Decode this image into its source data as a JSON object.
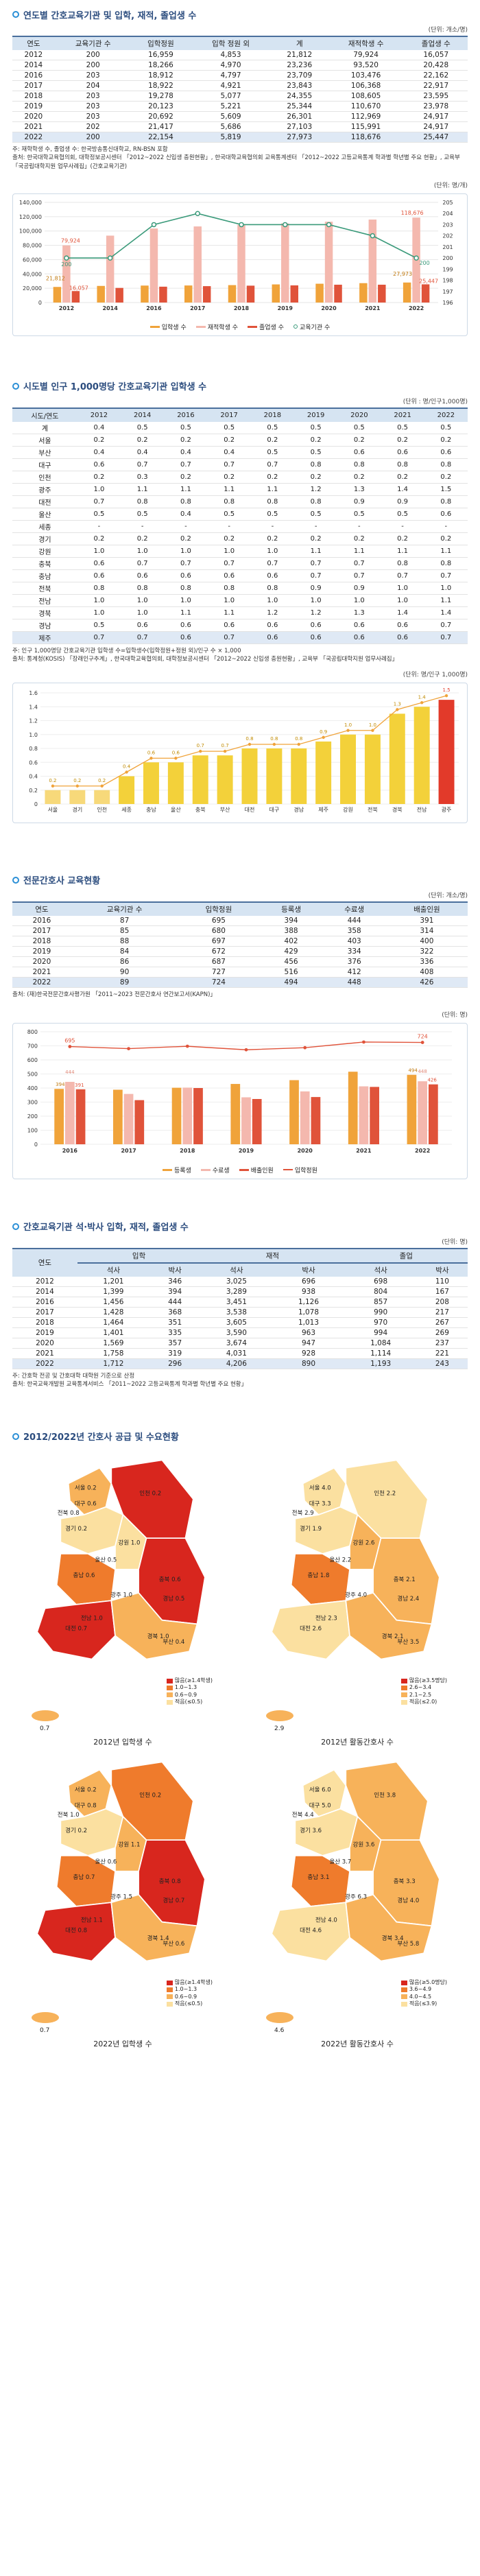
{
  "s1": {
    "title": "연도별 간호교육기관 및 입학, 재적, 졸업생 수",
    "unit": "(단위: 개소/명)",
    "headers": [
      "연도",
      "교육기관 수",
      "입학정원",
      "입학 정원 외",
      "계",
      "재적학생 수",
      "졸업생 수"
    ],
    "rows": [
      [
        "2012",
        "200",
        "16,959",
        "4,853",
        "21,812",
        "79,924",
        "16,057"
      ],
      [
        "2014",
        "200",
        "18,266",
        "4,970",
        "23,236",
        "93,520",
        "20,428"
      ],
      [
        "2016",
        "203",
        "18,912",
        "4,797",
        "23,709",
        "103,476",
        "22,162"
      ],
      [
        "2017",
        "204",
        "18,922",
        "4,921",
        "23,843",
        "106,368",
        "22,917"
      ],
      [
        "2018",
        "203",
        "19,278",
        "5,077",
        "24,355",
        "108,605",
        "23,595"
      ],
      [
        "2019",
        "203",
        "20,123",
        "5,221",
        "25,344",
        "110,670",
        "23,978"
      ],
      [
        "2020",
        "203",
        "20,692",
        "5,609",
        "26,301",
        "112,969",
        "24,917"
      ],
      [
        "2021",
        "202",
        "21,417",
        "5,686",
        "27,103",
        "115,991",
        "24,917"
      ],
      [
        "2022",
        "200",
        "22,154",
        "5,819",
        "27,973",
        "118,676",
        "25,447"
      ]
    ],
    "note1": "주: 재학학생 수, 졸업생 수: 한국방송통신대학교, RN-BSN 포함",
    "note2": "출처: 한국대학교육협의회, 대학정보공시센터 「2012~2022 신입생 충원현황」, 한국대학교육협의회 교육통계센터 「2012~2022 고등교육통계 학과별 학년별 주요 현황」, 교육부 「국공립대학지원 업무사례집」(간호교육기관)",
    "chart_unit": "(단위: 명/개)"
  },
  "chart1": {
    "type": "bar",
    "categories": [
      "2012",
      "2014",
      "2016",
      "2017",
      "2018",
      "2019",
      "2020",
      "2021",
      "2022"
    ],
    "series": [
      {
        "name": "입학생 수",
        "values": [
          21812,
          23236,
          23709,
          23843,
          24355,
          25344,
          26301,
          27103,
          27973
        ]
      },
      {
        "name": "재적학생 수",
        "values": [
          79924,
          93520,
          103476,
          106368,
          108605,
          110670,
          112969,
          115991,
          118676
        ]
      },
      {
        "name": "졸업생 수",
        "values": [
          16057,
          20428,
          22162,
          22917,
          23595,
          23978,
          24917,
          24917,
          25447
        ]
      },
      {
        "name": "교육기관 수",
        "values": [
          200,
          200,
          203,
          204,
          203,
          203,
          203,
          202,
          200
        ]
      }
    ],
    "ylim": [
      0,
      140000
    ],
    "y2lim": [
      196,
      205
    ],
    "yticks": [
      "0",
      "20,000",
      "40,000",
      "60,000",
      "80,000",
      "100,000",
      "120,000",
      "140,000"
    ],
    "y2ticks": [
      "196",
      "197",
      "198",
      "199",
      "200",
      "201",
      "202",
      "203",
      "204",
      "205"
    ],
    "labels": {
      "first_bar": "79,924",
      "last_bar": "118,676",
      "first_in": "21,812",
      "first_grad": "16,057",
      "last_in": "27,973",
      "last_grad": "25,447",
      "first_org": "200",
      "last_org": "200"
    }
  },
  "s2": {
    "title": "시도별 인구 1,000명당 간호교육기관 입학생 수",
    "unit": "(단위 : 명/인구1,000명)",
    "headers": [
      "시도/연도",
      "2012",
      "2014",
      "2016",
      "2017",
      "2018",
      "2019",
      "2020",
      "2021",
      "2022"
    ],
    "rows": [
      [
        "계",
        "0.4",
        "0.5",
        "0.5",
        "0.5",
        "0.5",
        "0.5",
        "0.5",
        "0.5",
        "0.5"
      ],
      [
        "서울",
        "0.2",
        "0.2",
        "0.2",
        "0.2",
        "0.2",
        "0.2",
        "0.2",
        "0.2",
        "0.2"
      ],
      [
        "부산",
        "0.4",
        "0.4",
        "0.4",
        "0.4",
        "0.5",
        "0.5",
        "0.6",
        "0.6",
        "0.6"
      ],
      [
        "대구",
        "0.6",
        "0.7",
        "0.7",
        "0.7",
        "0.7",
        "0.8",
        "0.8",
        "0.8",
        "0.8"
      ],
      [
        "인천",
        "0.2",
        "0.3",
        "0.2",
        "0.2",
        "0.2",
        "0.2",
        "0.2",
        "0.2",
        "0.2"
      ],
      [
        "광주",
        "1.0",
        "1.1",
        "1.1",
        "1.1",
        "1.1",
        "1.2",
        "1.3",
        "1.4",
        "1.5"
      ],
      [
        "대전",
        "0.7",
        "0.8",
        "0.8",
        "0.8",
        "0.8",
        "0.8",
        "0.9",
        "0.9",
        "0.8"
      ],
      [
        "울산",
        "0.5",
        "0.5",
        "0.4",
        "0.5",
        "0.5",
        "0.5",
        "0.5",
        "0.5",
        "0.6"
      ],
      [
        "세종",
        "-",
        "-",
        "-",
        "-",
        "-",
        "-",
        "-",
        "-",
        "-"
      ],
      [
        "경기",
        "0.2",
        "0.2",
        "0.2",
        "0.2",
        "0.2",
        "0.2",
        "0.2",
        "0.2",
        "0.2"
      ],
      [
        "강원",
        "1.0",
        "1.0",
        "1.0",
        "1.0",
        "1.0",
        "1.1",
        "1.1",
        "1.1",
        "1.1"
      ],
      [
        "충북",
        "0.6",
        "0.7",
        "0.7",
        "0.7",
        "0.7",
        "0.7",
        "0.7",
        "0.8",
        "0.8"
      ],
      [
        "충남",
        "0.6",
        "0.6",
        "0.6",
        "0.6",
        "0.6",
        "0.7",
        "0.7",
        "0.7",
        "0.7"
      ],
      [
        "전북",
        "0.8",
        "0.8",
        "0.8",
        "0.8",
        "0.8",
        "0.9",
        "0.9",
        "1.0",
        "1.0"
      ],
      [
        "전남",
        "1.0",
        "1.0",
        "1.0",
        "1.0",
        "1.0",
        "1.0",
        "1.0",
        "1.0",
        "1.1"
      ],
      [
        "경북",
        "1.0",
        "1.0",
        "1.1",
        "1.1",
        "1.2",
        "1.2",
        "1.3",
        "1.4",
        "1.4"
      ],
      [
        "경남",
        "0.5",
        "0.6",
        "0.6",
        "0.6",
        "0.6",
        "0.6",
        "0.6",
        "0.6",
        "0.7"
      ],
      [
        "제주",
        "0.7",
        "0.7",
        "0.6",
        "0.7",
        "0.6",
        "0.6",
        "0.6",
        "0.6",
        "0.7"
      ]
    ],
    "note1": "주: 인구 1,000명당 간호교육기관 입학생 수=입학생수(입학정원+정원 외)/인구 수 × 1,000",
    "note2": "출처: 통계청(KOSIS) 「장래인구추계」, 한국대학교육협의회, 대학정보공시센터 「2012~2022 신입생 충원현황」, 교육부 「국공립대학지원 업무사례집」",
    "chart_unit": "(단위: 명/인구 1,000명)"
  },
  "chart2": {
    "type": "bar",
    "categories": [
      "서울",
      "경기",
      "인천",
      "세종",
      "충남",
      "울산",
      "충북",
      "부산",
      "대전",
      "대구",
      "경남",
      "제주",
      "강원",
      "전북",
      "경북",
      "전남",
      "광주"
    ],
    "values": [
      0.2,
      0.2,
      0.2,
      0.4,
      0.6,
      0.6,
      0.7,
      0.7,
      0.8,
      0.8,
      0.8,
      0.9,
      1.0,
      1.0,
      1.3,
      1.4,
      1.5
    ],
    "ylim": [
      0,
      1.6
    ],
    "yticks": [
      "0",
      "0.2",
      "0.4",
      "0.6",
      "0.8",
      "1.0",
      "1.2",
      "1.4",
      "1.6"
    ],
    "value_labels": [
      "0.2",
      "0.2",
      "0.2",
      "0.4",
      "0.6",
      "0.6",
      "0.7",
      "0.7",
      "0.8",
      "0.8",
      "0.8",
      "0.9",
      "1.0",
      "1.0",
      "1.3",
      "1.4",
      "1.5"
    ]
  },
  "s3": {
    "title": "전문간호사 교육현황",
    "unit": "(단위: 개소/명)",
    "headers": [
      "연도",
      "교육기관 수",
      "입학정원",
      "등록생",
      "수료생",
      "배출인원"
    ],
    "rows": [
      [
        "2016",
        "87",
        "695",
        "394",
        "444",
        "391"
      ],
      [
        "2017",
        "85",
        "680",
        "388",
        "358",
        "314"
      ],
      [
        "2018",
        "88",
        "697",
        "402",
        "403",
        "400"
      ],
      [
        "2019",
        "84",
        "672",
        "429",
        "334",
        "322"
      ],
      [
        "2020",
        "86",
        "687",
        "456",
        "376",
        "336"
      ],
      [
        "2021",
        "90",
        "727",
        "516",
        "412",
        "408"
      ],
      [
        "2022",
        "89",
        "724",
        "494",
        "448",
        "426"
      ]
    ],
    "note": "출처: (재)한국전문간호사평가원 「2011~2023 전문간호사 연간보고서(KAPN)」",
    "chart_unit": "(단위: 명)"
  },
  "chart3": {
    "type": "bar",
    "categories": [
      "2016",
      "2017",
      "2018",
      "2019",
      "2020",
      "2021",
      "2022"
    ],
    "series": [
      {
        "name": "등록생",
        "values": [
          394,
          388,
          402,
          429,
          456,
          516,
          494
        ]
      },
      {
        "name": "수료생",
        "values": [
          444,
          358,
          403,
          334,
          376,
          412,
          448
        ]
      },
      {
        "name": "배출인원",
        "values": [
          391,
          314,
          400,
          322,
          336,
          408,
          426
        ]
      },
      {
        "name": "입학정원",
        "values": [
          695,
          680,
          697,
          672,
          687,
          727,
          724
        ]
      }
    ],
    "ylim": [
      0,
      800
    ],
    "yticks": [
      "0",
      "100",
      "200",
      "300",
      "400",
      "500",
      "600",
      "700",
      "800"
    ],
    "labels": {
      "first_line": "695",
      "last_line": "724",
      "first_a": "394",
      "first_b": "444",
      "first_c": "391",
      "last_a": "494",
      "last_b": "448",
      "last_c": "426"
    }
  },
  "s4": {
    "title": "간호교육기관 석·박사 입학, 재적, 졸업생 수",
    "unit": "(단위: 명)",
    "group_headers": [
      "입학",
      "재적",
      "졸업"
    ],
    "sub_headers": [
      "석사",
      "박사",
      "석사",
      "박사",
      "석사",
      "박사"
    ],
    "year_header": "연도",
    "rows": [
      [
        "2012",
        "1,201",
        "346",
        "3,025",
        "696",
        "698",
        "110"
      ],
      [
        "2014",
        "1,399",
        "394",
        "3,289",
        "938",
        "804",
        "167"
      ],
      [
        "2016",
        "1,456",
        "444",
        "3,451",
        "1,126",
        "857",
        "208"
      ],
      [
        "2017",
        "1,428",
        "368",
        "3,538",
        "1,078",
        "990",
        "217"
      ],
      [
        "2018",
        "1,464",
        "351",
        "3,605",
        "1,013",
        "970",
        "267"
      ],
      [
        "2019",
        "1,401",
        "335",
        "3,590",
        "963",
        "994",
        "269"
      ],
      [
        "2020",
        "1,569",
        "357",
        "3,674",
        "947",
        "1,084",
        "237"
      ],
      [
        "2021",
        "1,758",
        "319",
        "4,031",
        "928",
        "1,114",
        "221"
      ],
      [
        "2022",
        "1,712",
        "296",
        "4,206",
        "890",
        "1,193",
        "243"
      ]
    ],
    "note1": "주: 간호학 전공 및 간호대학 대학원 기준으로 산정",
    "note2": "출처: 한국교육개발원 교육통계서비스 「2011~2022 고등교육통계 학과별 학년별 주요 현황」"
  },
  "s5": {
    "title": "2012/2022년 간호사 공급 및 수요현황",
    "maps": [
      {
        "caption": "2012년 입학생 수",
        "jeju": "0.7",
        "legend": [
          "많음(≥1.4학생)",
          "1.0~1.3",
          "0.6~0.9",
          "적음(≤0.5)"
        ]
      },
      {
        "caption": "2012년 활동간호사 수",
        "jeju": "2.9",
        "legend": [
          "많음(≥3.5명당)",
          "2.6~3.4",
          "2.1~2.5",
          "적음(≤2.0)"
        ]
      },
      {
        "caption": "2022년 입학생 수",
        "jeju": "0.7",
        "legend": [
          "많음(≥1.4학생)",
          "1.0~1.3",
          "0.6~0.9",
          "적음(≤0.5)"
        ]
      },
      {
        "caption": "2022년 활동간호사 수",
        "jeju": "4.6",
        "legend": [
          "많음(≥5.0명당)",
          "3.6~4.9",
          "4.0~4.5",
          "적음(≤3.9)"
        ]
      }
    ],
    "map_labels": [
      [
        "서울 0.2",
        "인천 0.2",
        "경기 0.2",
        "강원 1.0",
        "충북 0.6",
        "충남 0.6",
        "대전 0.7",
        "경북 1.0",
        "대구 0.6",
        "전북 0.8",
        "울산 0.5",
        "광주 1.0",
        "경남 0.5",
        "부산 0.4",
        "전남 1.0"
      ],
      [
        "서울 4.0",
        "인천 2.2",
        "경기 1.9",
        "강원 2.6",
        "충북 2.1",
        "충남 1.8",
        "대전 2.6",
        "경북 2.1",
        "대구 3.3",
        "전북 2.9",
        "울산 2.2",
        "광주 4.0",
        "경남 2.4",
        "부산 3.5",
        "전남 2.3"
      ],
      [
        "서울 0.2",
        "인천 0.2",
        "경기 0.2",
        "강원 1.1",
        "충북 0.8",
        "충남 0.7",
        "대전 0.8",
        "경북 1.4",
        "대구 0.8",
        "전북 1.0",
        "울산 0.6",
        "광주 1.5",
        "경남 0.7",
        "부산 0.6",
        "전남 1.1"
      ],
      [
        "서울 6.0",
        "인천 3.8",
        "경기 3.6",
        "강원 3.6",
        "충북 3.3",
        "충남 3.1",
        "대전 4.6",
        "경북 3.4",
        "대구 5.0",
        "전북 4.4",
        "울산 3.7",
        "광주 6.3",
        "경남 4.0",
        "부산 5.8",
        "전남 4.0"
      ]
    ]
  },
  "colors": {
    "bar_pink": "#f4b8ae",
    "bar_orange": "#f0a33a",
    "line_teal": "#3a9a7a",
    "line_red": "#e0533a",
    "bar_yellow": "#f3d13a",
    "bar_red": "#e23a2a",
    "map_dark": "#d8261e",
    "map_mid": "#ef7b2c",
    "map_light": "#f7b25a",
    "map_pale": "#fbe0a0"
  }
}
